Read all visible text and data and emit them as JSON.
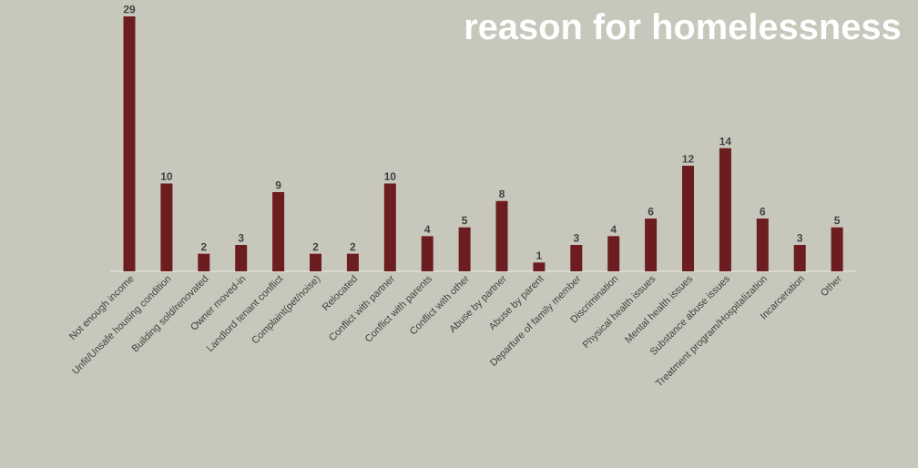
{
  "chart_data": {
    "type": "bar",
    "title": "reason for homelessness",
    "categories": [
      "Not enough income",
      "Unfit/Unsafe housing condition",
      "Building sold/renovated",
      "Owner moved-in",
      "Landlord tenant conflict",
      "Complaint(pet/noise)",
      "Relocated",
      "Conflict with partner",
      "Conflict with parents",
      "Conflict with other",
      "Abuse by partner",
      "Abuse by parent",
      "Departure of family member",
      "Discrimination",
      "Physical health issues",
      "Mental health issues",
      "Substance abuse issues",
      "Treatment program/Hospitalization",
      "Incarceration",
      "Other"
    ],
    "values": [
      29,
      10,
      2,
      3,
      9,
      2,
      2,
      10,
      4,
      5,
      8,
      1,
      3,
      4,
      6,
      12,
      14,
      6,
      3,
      5
    ],
    "color": "#6b1d20",
    "data_labels": true
  }
}
